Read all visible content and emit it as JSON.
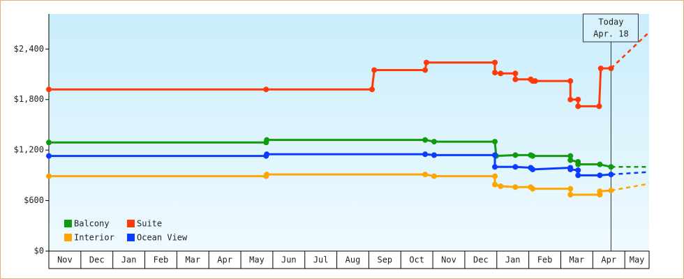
{
  "chart_data": {
    "type": "line",
    "months": [
      "Nov",
      "Dec",
      "Jan",
      "Feb",
      "Mar",
      "Apr",
      "May",
      "Jun",
      "Jul",
      "Aug",
      "Sep",
      "Oct",
      "Nov",
      "Dec",
      "Jan",
      "Feb",
      "Mar",
      "Apr",
      "May"
    ],
    "xlim": [
      0,
      18.76
    ],
    "xticks": [
      0,
      1,
      2,
      3,
      4,
      5,
      6,
      7,
      8,
      9,
      10,
      11,
      12,
      13,
      14,
      15,
      16,
      17,
      18
    ],
    "ylim": [
      0,
      2800
    ],
    "yticks": [
      {
        "value": 0,
        "label": "$0"
      },
      {
        "value": 600,
        "label": "$600"
      },
      {
        "value": 1200,
        "label": "$1,200"
      },
      {
        "value": 1800,
        "label": "$1,800"
      },
      {
        "value": 2400,
        "label": "$2,400"
      }
    ],
    "legend": "lower left",
    "today": {
      "x": 17.57,
      "lines": [
        "Today",
        "Apr. 18"
      ]
    },
    "series": [
      {
        "name": "Balcony",
        "color": "#109a10",
        "x": [
          0,
          6.79,
          6.81,
          11.76,
          12.04,
          13.94,
          13.98,
          14.58,
          15.06,
          15.12,
          16.3,
          16.3,
          16.54,
          16.54,
          17.22,
          17.57
        ],
        "values": [
          1290,
          1290,
          1320,
          1320,
          1300,
          1300,
          1130,
          1140,
          1140,
          1130,
          1130,
          1080,
          1060,
          1030,
          1030,
          1000
        ],
        "forecast": {
          "x": 18.76,
          "value": 1000
        }
      },
      {
        "name": "Suite",
        "color": "#ff3a0a",
        "x": [
          0,
          6.79,
          10.1,
          10.17,
          11.76,
          11.8,
          13.94,
          13.94,
          14.12,
          14.58,
          14.58,
          15.06,
          15.12,
          15.2,
          16.3,
          16.3,
          16.54,
          16.54,
          17.2,
          17.25,
          17.57
        ],
        "values": [
          1920,
          1920,
          1920,
          2150,
          2150,
          2240,
          2240,
          2120,
          2110,
          2110,
          2040,
          2040,
          2020,
          2020,
          2020,
          1800,
          1800,
          1720,
          1720,
          2170,
          2170
        ],
        "forecast": {
          "x": 18.76,
          "value": 2600
        }
      },
      {
        "name": "Interior",
        "color": "#ffa500",
        "x": [
          0,
          6.79,
          6.81,
          11.76,
          12.04,
          13.94,
          13.94,
          14.12,
          14.58,
          15.06,
          15.12,
          16.3,
          16.3,
          17.22,
          17.22,
          17.57
        ],
        "values": [
          890,
          890,
          910,
          910,
          890,
          890,
          790,
          770,
          760,
          760,
          740,
          740,
          670,
          670,
          710,
          720
        ],
        "forecast": {
          "x": 18.76,
          "value": 800
        }
      },
      {
        "name": "Ocean View",
        "color": "#0a3cff",
        "x": [
          0,
          6.79,
          6.81,
          11.76,
          12.04,
          13.94,
          13.94,
          14.58,
          15.06,
          15.12,
          16.3,
          16.3,
          16.54,
          16.54,
          17.22,
          17.57
        ],
        "values": [
          1130,
          1130,
          1150,
          1150,
          1140,
          1140,
          1000,
          1000,
          990,
          970,
          990,
          970,
          960,
          900,
          900,
          910
        ],
        "forecast": {
          "x": 18.76,
          "value": 940
        }
      }
    ]
  }
}
